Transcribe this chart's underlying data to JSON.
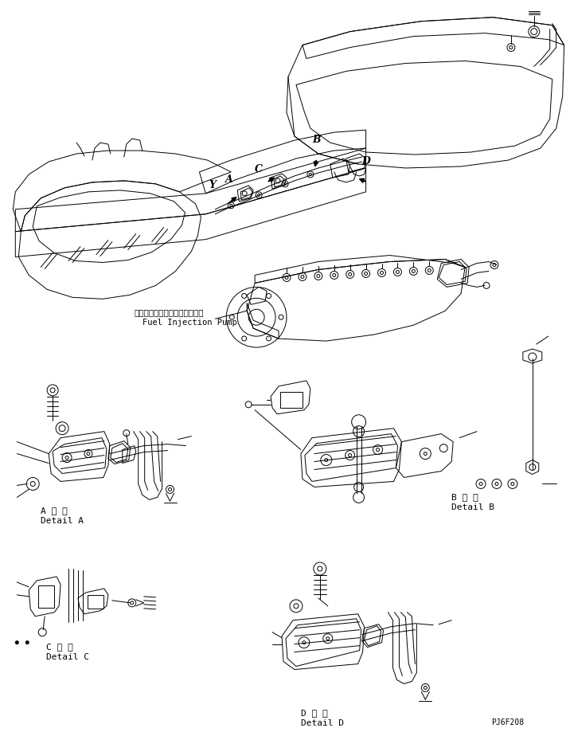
{
  "background": "#ffffff",
  "fig_w": 7.16,
  "fig_h": 9.19,
  "dpi": 100,
  "lc": "#000000",
  "lw": 0.7,
  "pump_label_jp": "フェルインジェクションポンプ",
  "pump_label_en": "Fuel Injection Pump",
  "label_A_jp": "A 詳 細",
  "label_A_en": "Detail A",
  "label_B_jp": "B 詳 細",
  "label_B_en": "Detail B",
  "label_C_jp": "C 詳 細",
  "label_C_en": "Detail C",
  "label_D_jp": "D 詳 細",
  "label_D_en": "Detail D",
  "code": "PJ6F208"
}
